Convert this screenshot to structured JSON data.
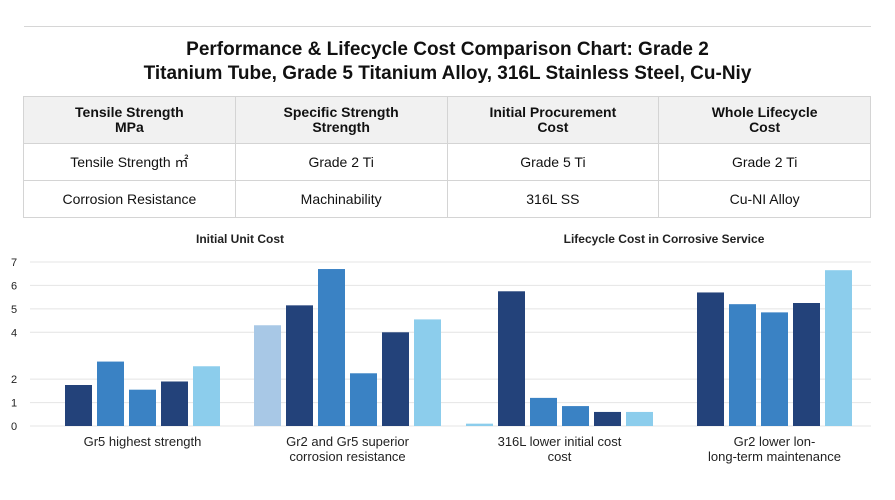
{
  "title": {
    "line1": "Performance & Lifecycle Cost Comparison Chart: Grade 2",
    "line2": "Titanium Tube, Grade 5 Titanium Alloy, 316L Stainless Steel, Cu-Niy"
  },
  "table": {
    "headers": [
      [
        "Tensile Strength",
        "MPa"
      ],
      [
        "Specific Strength",
        "Strength"
      ],
      [
        "Initial Procurement",
        "Cost"
      ],
      [
        "Whole Lifecycle",
        "Cost"
      ]
    ],
    "rows": [
      [
        "Tensile Strength ㎡",
        "Grade 2 Ti",
        "Grade 5 Ti",
        "Grade 2 Ti"
      ],
      [
        "Corrosion Resistance",
        "Machinability",
        "316L SS",
        "Cu-NI Alloy"
      ]
    ]
  },
  "colors": {
    "navy": "#23427a",
    "medium": "#3a82c4",
    "pale": "#a8c8e6",
    "sky": "#8ccdec",
    "text": "#222222",
    "grid": "#e4e4e4"
  },
  "chart_data": {
    "type": "bar",
    "ylim": [
      0,
      7
    ],
    "yticks": [
      0,
      1,
      2,
      4,
      5,
      6,
      7
    ],
    "panels": [
      {
        "title": "Initial Unit Cost",
        "groups": [
          0,
          1
        ]
      },
      {
        "title": "Lifecycle Cost in Corrosive Service",
        "groups": [
          2,
          3
        ]
      }
    ],
    "groups": [
      {
        "label": [
          "Gr5 highest strength"
        ],
        "bars": [
          {
            "value": 1.75,
            "color": "navy"
          },
          {
            "value": 2.75,
            "color": "medium"
          },
          {
            "value": 1.55,
            "color": "medium"
          },
          {
            "value": 1.9,
            "color": "navy"
          },
          {
            "value": 2.55,
            "color": "sky"
          }
        ]
      },
      {
        "label": [
          "Gr2 and Gr5 superior",
          "corrosion resistance"
        ],
        "bars": [
          {
            "value": 4.3,
            "color": "pale"
          },
          {
            "value": 5.15,
            "color": "navy"
          },
          {
            "value": 6.7,
            "color": "medium"
          },
          {
            "value": 2.25,
            "color": "medium"
          },
          {
            "value": 4.0,
            "color": "navy"
          },
          {
            "value": 4.55,
            "color": "sky"
          }
        ]
      },
      {
        "label": [
          "316L lower initial cost",
          "cost"
        ],
        "bars": [
          {
            "value": 0.1,
            "color": "sky"
          },
          {
            "value": 5.75,
            "color": "navy"
          },
          {
            "value": 1.2,
            "color": "medium"
          },
          {
            "value": 0.85,
            "color": "medium"
          },
          {
            "value": 0.6,
            "color": "navy"
          },
          {
            "value": 0.6,
            "color": "sky"
          }
        ]
      },
      {
        "label": [
          "Gr2 lower lon-",
          "long-term maintenance"
        ],
        "bars": [
          {
            "value": 5.7,
            "color": "navy"
          },
          {
            "value": 5.2,
            "color": "medium"
          },
          {
            "value": 4.85,
            "color": "medium"
          },
          {
            "value": 5.25,
            "color": "navy"
          },
          {
            "value": 6.65,
            "color": "sky"
          }
        ]
      }
    ]
  }
}
